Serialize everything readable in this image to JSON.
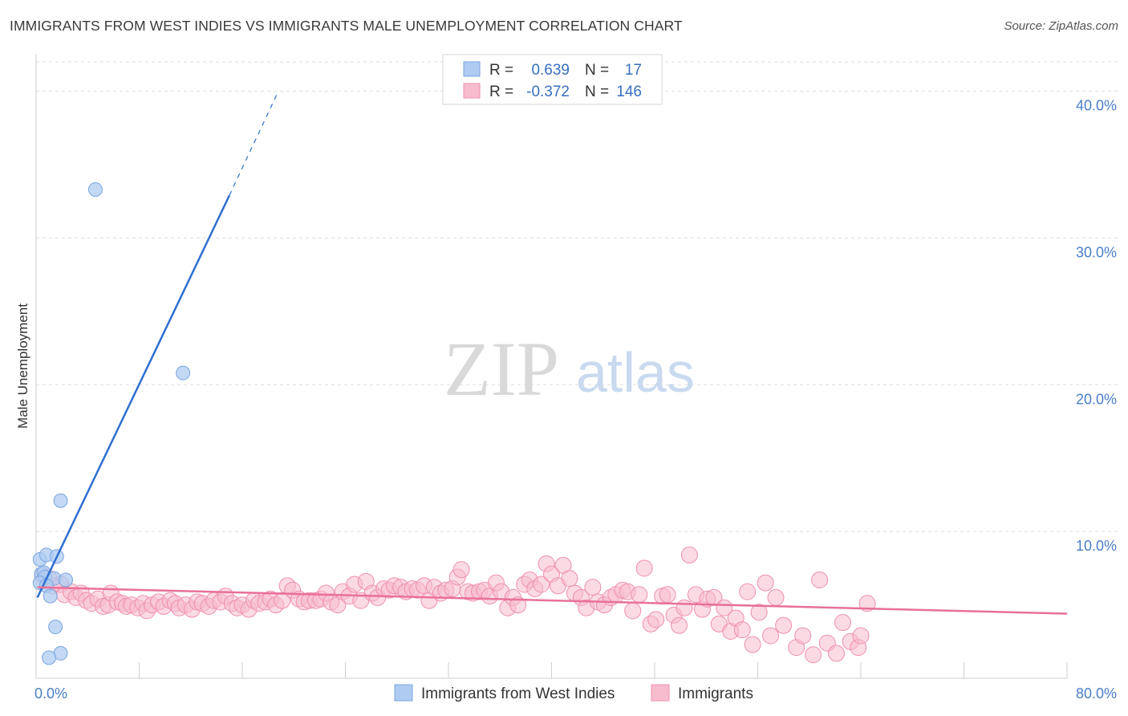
{
  "title": "IMMIGRANTS FROM WEST INDIES VS IMMIGRANTS MALE UNEMPLOYMENT CORRELATION CHART",
  "source": "Source: ZipAtlas.com",
  "watermark": {
    "zip": "ZIP",
    "atlas": "atlas"
  },
  "colors": {
    "blue_fill": "#aecbf2",
    "blue_stroke": "#7aa6e0",
    "blue_line": "#2f6fd0",
    "pink_fill": "#f7bccd",
    "pink_stroke": "#ef8fae",
    "pink_line": "#e8709a",
    "grid": "#dddddd",
    "axis_text": "#4a7ec8"
  },
  "legend_box": {
    "rows": [
      {
        "r_label": "R =",
        "r_value": "0.639",
        "n_label": "N =",
        "n_value": "17",
        "series": "blue"
      },
      {
        "r_label": "R =",
        "r_value": "-0.372",
        "n_label": "N =",
        "n_value": "146",
        "series": "pink"
      }
    ]
  },
  "chart_data": {
    "type": "scatter",
    "xlabel": "",
    "ylabel": "Male Unemployment",
    "xlim": [
      0,
      80
    ],
    "ylim": [
      0,
      42
    ],
    "x_ticks": {
      "0": "0.0%",
      "80": "80.0%"
    },
    "y_ticks": [
      {
        "value": 10,
        "label": "10.0%"
      },
      {
        "value": 20,
        "label": "20.0%"
      },
      {
        "value": 30,
        "label": "30.0%"
      },
      {
        "value": 40,
        "label": "40.0%"
      }
    ],
    "legend_bottom": [
      "Immigrants from West Indies",
      "Immigrants"
    ],
    "series": [
      {
        "name": "Immigrants from West Indies",
        "color": "blue",
        "points": [
          [
            4.6,
            33.3
          ],
          [
            11.4,
            20.8
          ],
          [
            1.9,
            12.1
          ],
          [
            0.3,
            8.1
          ],
          [
            0.8,
            8.4
          ],
          [
            1.6,
            8.3
          ],
          [
            0.4,
            7.1
          ],
          [
            0.6,
            7.2
          ],
          [
            0.7,
            6.9
          ],
          [
            1.4,
            6.8
          ],
          [
            2.3,
            6.7
          ],
          [
            0.3,
            6.5
          ],
          [
            0.8,
            6.3
          ],
          [
            1.1,
            5.6
          ],
          [
            1.5,
            3.5
          ],
          [
            1.9,
            1.7
          ],
          [
            1.0,
            1.4
          ]
        ],
        "trend": {
          "x0": 0.1,
          "y0": 5.5,
          "x1": 15.0,
          "y1": 32.9,
          "x_dash_end": 18.8,
          "y_dash_end": 40.0
        }
      },
      {
        "name": "Immigrants",
        "color": "pink",
        "points": [
          [
            0.5,
            7.0
          ],
          [
            1.0,
            6.8
          ],
          [
            1.3,
            6.3
          ],
          [
            1.9,
            6.4
          ],
          [
            2.2,
            5.7
          ],
          [
            2.7,
            5.9
          ],
          [
            3.1,
            5.5
          ],
          [
            3.5,
            5.8
          ],
          [
            3.9,
            5.3
          ],
          [
            4.3,
            5.1
          ],
          [
            4.8,
            5.4
          ],
          [
            5.2,
            4.9
          ],
          [
            5.6,
            5.0
          ],
          [
            5.8,
            5.8
          ],
          [
            6.3,
            5.2
          ],
          [
            6.7,
            5.1
          ],
          [
            7.0,
            4.9
          ],
          [
            7.4,
            5.0
          ],
          [
            7.9,
            4.8
          ],
          [
            8.3,
            5.1
          ],
          [
            8.6,
            4.6
          ],
          [
            9.0,
            5.0
          ],
          [
            9.5,
            5.2
          ],
          [
            9.9,
            4.9
          ],
          [
            10.4,
            5.3
          ],
          [
            10.8,
            5.1
          ],
          [
            11.1,
            4.8
          ],
          [
            11.6,
            5.0
          ],
          [
            12.1,
            4.7
          ],
          [
            12.5,
            5.2
          ],
          [
            12.9,
            5.1
          ],
          [
            13.4,
            4.9
          ],
          [
            13.8,
            5.3
          ],
          [
            14.3,
            5.2
          ],
          [
            14.7,
            5.6
          ],
          [
            15.2,
            5.1
          ],
          [
            15.6,
            4.8
          ],
          [
            16.0,
            5.0
          ],
          [
            16.5,
            4.7
          ],
          [
            16.9,
            5.3
          ],
          [
            17.3,
            5.1
          ],
          [
            17.8,
            5.2
          ],
          [
            18.2,
            5.4
          ],
          [
            18.6,
            5.0
          ],
          [
            19.1,
            5.3
          ],
          [
            19.5,
            6.3
          ],
          [
            19.9,
            6.0
          ],
          [
            20.4,
            5.4
          ],
          [
            20.8,
            5.2
          ],
          [
            21.2,
            5.3
          ],
          [
            21.7,
            5.3
          ],
          [
            22.1,
            5.4
          ],
          [
            22.5,
            5.8
          ],
          [
            22.9,
            5.2
          ],
          [
            23.4,
            5.0
          ],
          [
            23.8,
            5.9
          ],
          [
            24.3,
            5.6
          ],
          [
            24.7,
            6.4
          ],
          [
            25.2,
            5.3
          ],
          [
            25.6,
            6.6
          ],
          [
            26.1,
            5.8
          ],
          [
            26.5,
            5.5
          ],
          [
            27.0,
            6.1
          ],
          [
            27.4,
            6.0
          ],
          [
            27.8,
            6.3
          ],
          [
            28.3,
            6.2
          ],
          [
            28.7,
            5.9
          ],
          [
            29.2,
            6.1
          ],
          [
            29.6,
            6.0
          ],
          [
            30.1,
            6.3
          ],
          [
            30.5,
            5.3
          ],
          [
            30.9,
            6.2
          ],
          [
            31.4,
            5.8
          ],
          [
            31.8,
            6.0
          ],
          [
            32.3,
            6.1
          ],
          [
            32.7,
            6.9
          ],
          [
            33.0,
            7.4
          ],
          [
            33.5,
            5.9
          ],
          [
            33.9,
            5.8
          ],
          [
            34.4,
            5.9
          ],
          [
            34.8,
            6.0
          ],
          [
            35.2,
            5.6
          ],
          [
            35.7,
            6.5
          ],
          [
            36.1,
            5.9
          ],
          [
            36.6,
            4.8
          ],
          [
            37.0,
            5.5
          ],
          [
            37.4,
            5.0
          ],
          [
            37.9,
            6.4
          ],
          [
            38.3,
            6.7
          ],
          [
            38.7,
            6.1
          ],
          [
            39.2,
            6.4
          ],
          [
            39.6,
            7.8
          ],
          [
            40.0,
            7.1
          ],
          [
            40.5,
            6.3
          ],
          [
            40.9,
            7.7
          ],
          [
            41.4,
            6.8
          ],
          [
            41.8,
            5.8
          ],
          [
            42.3,
            5.5
          ],
          [
            42.7,
            4.8
          ],
          [
            43.2,
            6.2
          ],
          [
            43.6,
            5.2
          ],
          [
            44.1,
            5.0
          ],
          [
            44.6,
            5.5
          ],
          [
            45.0,
            5.7
          ],
          [
            45.5,
            6.0
          ],
          [
            45.9,
            5.9
          ],
          [
            46.3,
            4.6
          ],
          [
            46.8,
            5.7
          ],
          [
            47.2,
            7.5
          ],
          [
            47.7,
            3.7
          ],
          [
            48.1,
            4.0
          ],
          [
            48.6,
            5.6
          ],
          [
            49.0,
            5.7
          ],
          [
            49.5,
            4.3
          ],
          [
            49.9,
            3.6
          ],
          [
            50.3,
            4.8
          ],
          [
            50.7,
            8.4
          ],
          [
            51.2,
            5.7
          ],
          [
            51.7,
            4.7
          ],
          [
            52.1,
            5.4
          ],
          [
            52.6,
            5.5
          ],
          [
            53.0,
            3.7
          ],
          [
            53.4,
            4.8
          ],
          [
            53.9,
            3.2
          ],
          [
            54.3,
            4.1
          ],
          [
            54.8,
            3.3
          ],
          [
            55.2,
            5.9
          ],
          [
            55.6,
            2.3
          ],
          [
            56.1,
            4.5
          ],
          [
            56.6,
            6.5
          ],
          [
            57.0,
            2.9
          ],
          [
            57.4,
            5.5
          ],
          [
            58.0,
            3.6
          ],
          [
            59.0,
            2.1
          ],
          [
            59.5,
            2.9
          ],
          [
            60.3,
            1.6
          ],
          [
            60.8,
            6.7
          ],
          [
            61.4,
            2.4
          ],
          [
            62.1,
            1.7
          ],
          [
            62.6,
            3.8
          ],
          [
            63.2,
            2.5
          ],
          [
            63.8,
            2.1
          ],
          [
            64.0,
            2.9
          ],
          [
            64.5,
            5.1
          ]
        ],
        "trend": {
          "x0": 0.1,
          "y0": 6.2,
          "x1": 80.0,
          "y1": 4.4
        }
      }
    ]
  }
}
